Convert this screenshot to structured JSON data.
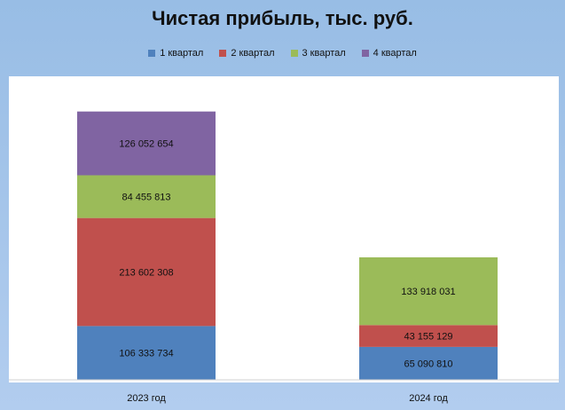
{
  "chart_data": {
    "type": "bar",
    "stacked": true,
    "title": "Чистая прибыль, тыс. руб.",
    "categories": [
      "2023 год",
      "2024 год"
    ],
    "series": [
      {
        "name": "1 квартал",
        "color": "#4f81bd",
        "values": [
          106333734,
          65090810
        ],
        "labels": [
          "106 333 734",
          "65 090 810"
        ]
      },
      {
        "name": "2 квартал",
        "color": "#c0504d",
        "values": [
          213602308,
          43155129
        ],
        "labels": [
          "213 602 308",
          "43 155 129"
        ]
      },
      {
        "name": "3 квартал",
        "color": "#9bbb59",
        "values": [
          84455813,
          133918031
        ],
        "labels": [
          "84 455 813",
          "133 918 031"
        ]
      },
      {
        "name": "4 квартал",
        "color": "#8064a2",
        "values": [
          126052654,
          0
        ],
        "labels": [
          "126 052 654",
          ""
        ]
      }
    ],
    "legend_position": "top",
    "grid": false,
    "ylim": [
      0,
      600000000
    ]
  }
}
